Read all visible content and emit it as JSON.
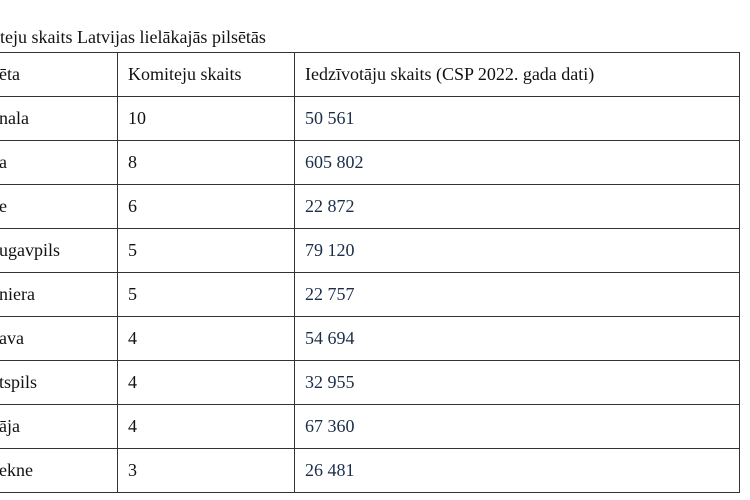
{
  "title": "teju skaits Latvijas lielākajās pilsētās",
  "table": {
    "header": [
      "ēta",
      "Komiteju skaits",
      "Iedzīvotāju skaits (CSP 2022. gada dati)"
    ],
    "rows": [
      [
        "nala",
        "10",
        "50 561"
      ],
      [
        "a",
        "8",
        "605 802"
      ],
      [
        "e",
        "6",
        "22 872"
      ],
      [
        "ugavpils",
        "5",
        "79 120"
      ],
      [
        "niera",
        "5",
        "22 757"
      ],
      [
        "ava",
        "4",
        "54 694"
      ],
      [
        "tspils",
        "4",
        "32 955"
      ],
      [
        "āja",
        "4",
        "67 360"
      ],
      [
        "ekne",
        "3",
        "26 481"
      ]
    ]
  }
}
